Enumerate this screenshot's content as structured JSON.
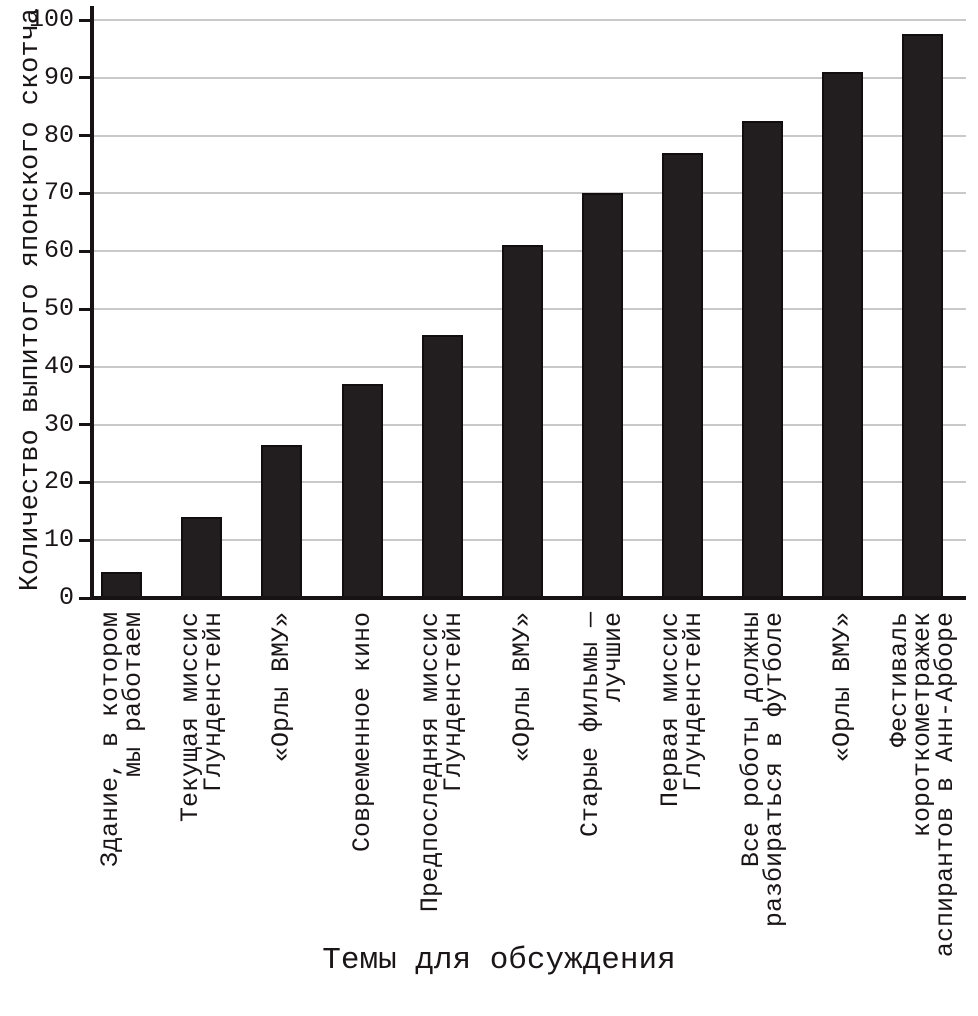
{
  "chart_data": {
    "type": "bar",
    "title": "",
    "xlabel": "Темы для обсуждения",
    "ylabel": "Количество выпитого японского скотча",
    "categories": [
      [
        "Здание, в котором",
        "мы работаем"
      ],
      [
        "Текущая миссис",
        "Глунденстейн"
      ],
      [
        "«Орлы ВМУ»"
      ],
      [
        "Современное кино"
      ],
      [
        "Предпоследняя миссис",
        "Глунденстейн"
      ],
      [
        "«Орлы ВМУ»"
      ],
      [
        "Старые фильмы —",
        "лучшие"
      ],
      [
        "Первая миссис",
        "Глунденстейн"
      ],
      [
        "Все роботы должны",
        "разбираться в футболе"
      ],
      [
        "«Орлы ВМУ»"
      ],
      [
        "Фестиваль",
        "короткометражек",
        "аспирантов в Анн-Арборе"
      ]
    ],
    "values": [
      4.5,
      14,
      26.5,
      37,
      45.5,
      61,
      70,
      77,
      82.5,
      91,
      97.5
    ],
    "yticks": [
      0,
      10,
      20,
      30,
      40,
      50,
      60,
      70,
      80,
      90,
      100
    ],
    "ylim": [
      0,
      100
    ],
    "grid": true,
    "legend_position": "none",
    "bar_color": "#221d1f",
    "axis_color": "#171214",
    "grid_color": "#c9c9c9",
    "text_color": "#1a1516"
  }
}
